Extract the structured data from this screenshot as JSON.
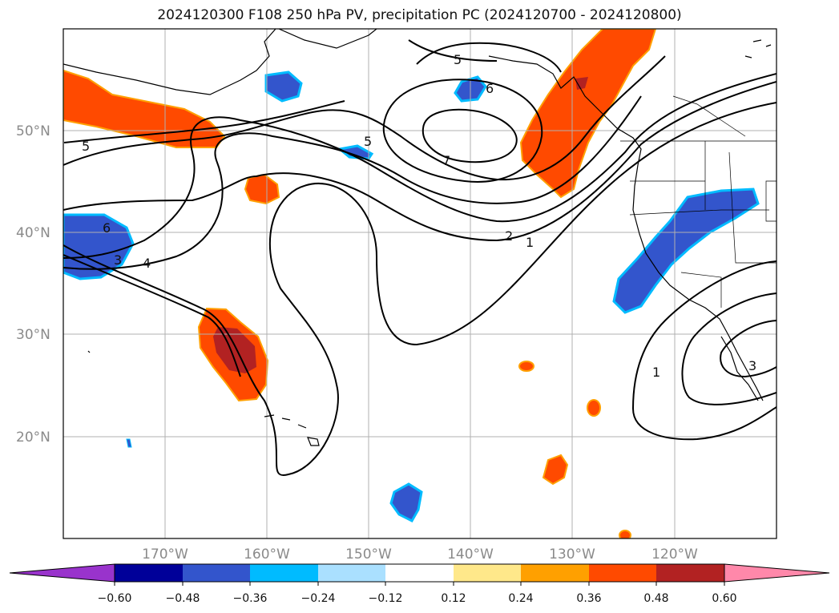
{
  "title": "2024120300 F108 250 hPa PV, precipitation PC (2024120700 - 2024120800)",
  "map": {
    "region": "North Pacific and western North America",
    "lat_labels": [
      "50°N",
      "40°N",
      "30°N",
      "20°N"
    ],
    "lon_labels": [
      "170°W",
      "160°W",
      "150°W",
      "140°W",
      "130°W",
      "120°W"
    ],
    "grid": true,
    "contour_labels": [
      "5",
      "6",
      "7",
      "5",
      "6",
      "4",
      "3",
      "2",
      "1",
      "1",
      "3",
      "5"
    ]
  },
  "colorbar": {
    "ticks": [
      "−0.60",
      "−0.48",
      "−0.36",
      "−0.24",
      "−0.12",
      "0.12",
      "0.24",
      "0.36",
      "0.48",
      "0.60"
    ],
    "colors": [
      "#9933cc",
      "#000099",
      "#3355cc",
      "#00bbff",
      "#aae0ff",
      "#ffffff",
      "#ffe88a",
      "#ffa000",
      "#ff4a00",
      "#b22222",
      "#ff88aa"
    ],
    "extend": "both"
  }
}
